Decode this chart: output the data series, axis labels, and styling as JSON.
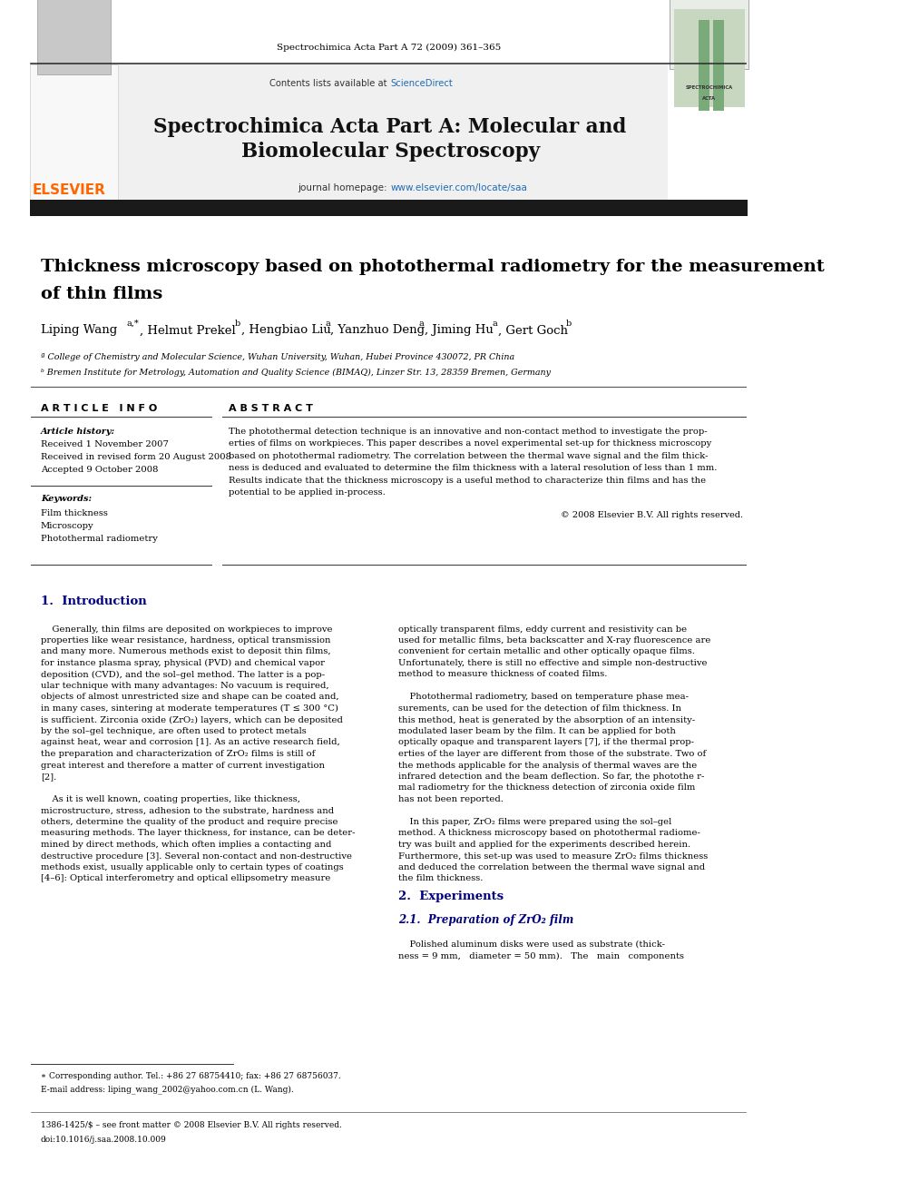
{
  "page_width": 9.92,
  "page_height": 13.23,
  "background_color": "#ffffff",
  "journal_ref": "Spectrochimica Acta Part A 72 (2009) 361–365",
  "contents_text": "Contents lists available at ",
  "science_direct": "ScienceDirect",
  "journal_title_line1": "Spectrochimica Acta Part A: Molecular and",
  "journal_title_line2": "Biomolecular Spectroscopy",
  "homepage_prefix": "journal homepage: ",
  "homepage_url": "www.elsevier.com/locate/saa",
  "elsevier_color": "#FF6600",
  "link_color": "#1F6BB5",
  "affiliation_a": "ª College of Chemistry and Molecular Science, Wuhan University, Wuhan, Hubei Province 430072, PR China",
  "affiliation_b": "ᵇ Bremen Institute for Metrology, Automation and Quality Science (BIMAQ), Linzer Str. 13, 28359 Bremen, Germany",
  "article_info_header": "A R T I C L E   I N F O",
  "abstract_header": "A B S T R A C T",
  "article_history_label": "Article history:",
  "received1": "Received 1 November 2007",
  "received2": "Received in revised form 20 August 2008",
  "accepted": "Accepted 9 October 2008",
  "keywords_label": "Keywords:",
  "keyword1": "Film thickness",
  "keyword2": "Microscopy",
  "keyword3": "Photothermal radiometry",
  "copyright": "© 2008 Elsevier B.V. All rights reserved.",
  "intro_header": "1.  Introduction",
  "section2_header": "2.  Experiments",
  "section21_header": "2.1.  Preparation of ZrO₂ film",
  "footnote_star": "∗ Corresponding author. Tel.: +86 27 68754410; fax: +86 27 68756037.",
  "footnote_email": "E-mail address: liping_wang_2002@yahoo.com.cn (L. Wang).",
  "footer_issn": "1386-1425/$ – see front matter © 2008 Elsevier B.V. All rights reserved.",
  "footer_doi": "doi:10.1016/j.saa.2008.10.009",
  "header_bg": "#f0f0f0",
  "dark_bar_color": "#1a1a1a",
  "section_header_color": "#000080",
  "intro_left_lines": [
    "    Generally, thin films are deposited on workpieces to improve",
    "properties like wear resistance, hardness, optical transmission",
    "and many more. Numerous methods exist to deposit thin films,",
    "for instance plasma spray, physical (PVD) and chemical vapor",
    "deposition (CVD), and the sol–gel method. The latter is a pop-",
    "ular technique with many advantages: No vacuum is required,",
    "objects of almost unrestricted size and shape can be coated and,",
    "in many cases, sintering at moderate temperatures (T ≤ 300 °C)",
    "is sufficient. Zirconia oxide (ZrO₂) layers, which can be deposited",
    "by the sol–gel technique, are often used to protect metals",
    "against heat, wear and corrosion [1]. As an active research field,",
    "the preparation and characterization of ZrO₂ films is still of",
    "great interest and therefore a matter of current investigation",
    "[2].",
    "",
    "    As it is well known, coating properties, like thickness,",
    "microstructure, stress, adhesion to the substrate, hardness and",
    "others, determine the quality of the product and require precise",
    "measuring methods. The layer thickness, for instance, can be deter-",
    "mined by direct methods, which often implies a contacting and",
    "destructive procedure [3]. Several non-contact and non-destructive",
    "methods exist, usually applicable only to certain types of coatings",
    "[4–6]: Optical interferometry and optical ellipsometry measure"
  ],
  "intro_right_lines": [
    "optically transparent films, eddy current and resistivity can be",
    "used for metallic films, beta backscatter and X-ray fluorescence are",
    "convenient for certain metallic and other optically opaque films.",
    "Unfortunately, there is still no effective and simple non-destructive",
    "method to measure thickness of coated films.",
    "",
    "    Photothermal radiometry, based on temperature phase mea-",
    "surements, can be used for the detection of film thickness. In",
    "this method, heat is generated by the absorption of an intensity-",
    "modulated laser beam by the film. It can be applied for both",
    "optically opaque and transparent layers [7], if the thermal prop-",
    "erties of the layer are different from those of the substrate. Two of",
    "the methods applicable for the analysis of thermal waves are the",
    "infrared detection and the beam deflection. So far, the photothe r-",
    "mal radiometry for the thickness detection of zirconia oxide film",
    "has not been reported.",
    "",
    "    In this paper, ZrO₂ films were prepared using the sol–gel",
    "method. A thickness microscopy based on photothermal radiome-",
    "try was built and applied for the experiments described herein.",
    "Furthermore, this set-up was used to measure ZrO₂ films thickness",
    "and deduced the correlation between the thermal wave signal and",
    "the film thickness."
  ],
  "abstract_lines": [
    "The photothermal detection technique is an innovative and non-contact method to investigate the prop-",
    "erties of films on workpieces. This paper describes a novel experimental set-up for thickness microscopy",
    "based on photothermal radiometry. The correlation between the thermal wave signal and the film thick-",
    "ness is deduced and evaluated to determine the film thickness with a lateral resolution of less than 1 mm.",
    "Results indicate that the thickness microscopy is a useful method to characterize thin films and has the",
    "potential to be applied in-process."
  ]
}
